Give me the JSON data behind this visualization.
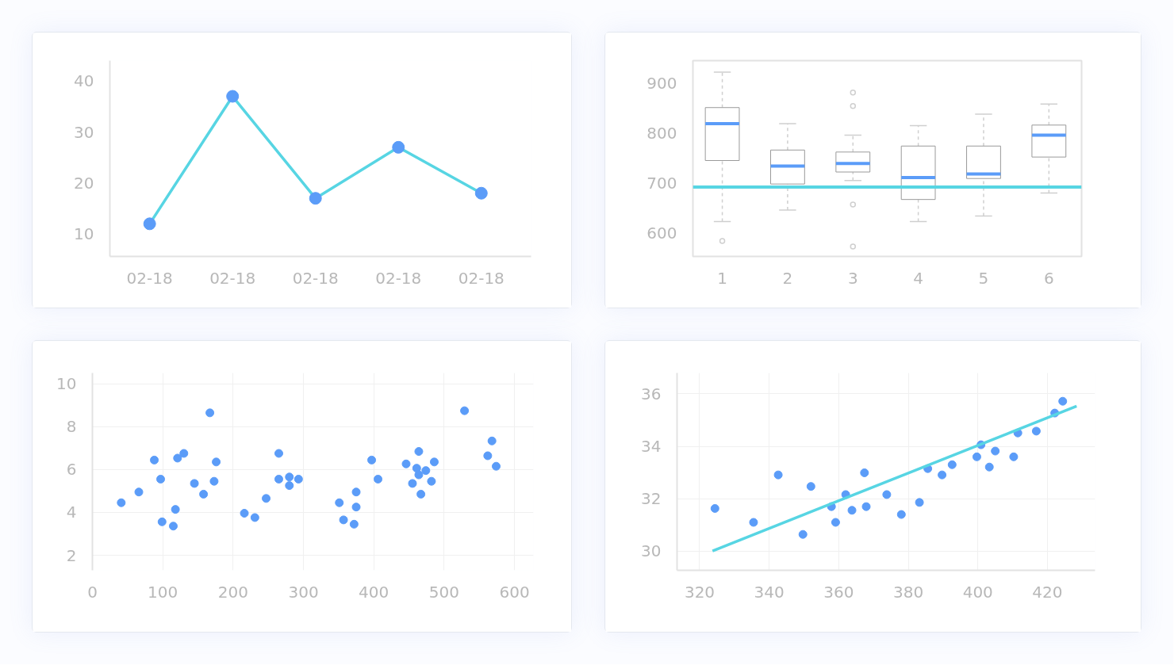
{
  "chart_data": [
    {
      "type": "line",
      "categories": [
        "02-18",
        "02-18",
        "02-18",
        "02-18",
        "02-18"
      ],
      "values": [
        12,
        37,
        17,
        27,
        18
      ],
      "color": "#57d5e3",
      "marker": "circle",
      "ylim": [
        5.6,
        44
      ],
      "yticks": [
        10,
        20,
        30,
        40
      ],
      "grid": false
    },
    {
      "type": "box",
      "categories": [
        "1",
        "2",
        "3",
        "4",
        "5",
        "6"
      ],
      "boxes": [
        {
          "low": 623,
          "q1": 745,
          "median": 819,
          "q3": 851,
          "high": 922,
          "outliers": [
            584
          ]
        },
        {
          "low": 646,
          "q1": 698,
          "median": 734,
          "q3": 766,
          "high": 819
        },
        {
          "low": 705,
          "q1": 722,
          "median": 739,
          "q3": 762,
          "high": 796,
          "outliers": [
            881,
            854,
            657,
            573
          ]
        },
        {
          "low": 623,
          "q1": 667,
          "median": 711,
          "q3": 774,
          "high": 815
        },
        {
          "low": 634,
          "q1": 709,
          "median": 718,
          "q3": 774,
          "high": 838
        },
        {
          "low": 680,
          "q1": 752,
          "median": 796,
          "q3": 816,
          "high": 858
        }
      ],
      "ref_lines": [
        {
          "axis": "y",
          "value": 692,
          "label": null,
          "color": "#57d5e3"
        }
      ],
      "ylim": [
        553,
        945
      ],
      "yticks": [
        600,
        700,
        800,
        900
      ],
      "grid": false
    },
    {
      "type": "scatter",
      "color": "#5b9cf8",
      "marker": "circle",
      "x": [
        41,
        66,
        88,
        97,
        99,
        115,
        118,
        121,
        130,
        145,
        158,
        167,
        173,
        176,
        216,
        231,
        247,
        265,
        265,
        280,
        280,
        293,
        351,
        357,
        372,
        375,
        375,
        397,
        406,
        446,
        455,
        461,
        464,
        464,
        467,
        474,
        482,
        486,
        529,
        562,
        568,
        574
      ],
      "values": [
        4.45,
        4.95,
        6.44,
        5.55,
        3.56,
        3.36,
        4.14,
        6.53,
        6.75,
        5.35,
        4.85,
        8.64,
        5.45,
        6.35,
        3.96,
        3.76,
        4.65,
        6.75,
        5.55,
        5.65,
        5.25,
        5.55,
        4.45,
        3.65,
        3.45,
        4.95,
        4.25,
        6.44,
        5.55,
        6.26,
        5.35,
        6.06,
        6.84,
        5.75,
        4.85,
        5.95,
        5.45,
        6.35,
        8.74,
        6.64,
        7.33,
        6.15
      ],
      "xlim": [
        0,
        627
      ],
      "ylim": [
        1.3,
        10.5
      ],
      "xticks": [
        0,
        100,
        200,
        300,
        400,
        500,
        600
      ],
      "yticks": [
        2,
        4,
        6,
        8,
        10
      ],
      "grid": true
    },
    {
      "type": "scatter",
      "series": [
        {
          "type": "scatter",
          "marker": "circle",
          "color": "#5b9cf8",
          "x": [
            324.4,
            335.5,
            342.6,
            349.7,
            352.0,
            357.9,
            359.1,
            362.0,
            363.8,
            367.4,
            367.9,
            373.8,
            378.0,
            383.2,
            385.6,
            389.7,
            392.6,
            399.7,
            400.9,
            403.3,
            405.0,
            410.3,
            411.5,
            416.8,
            422.1,
            424.4
          ],
          "values": [
            31.63,
            31.1,
            32.91,
            30.64,
            32.47,
            31.7,
            31.1,
            32.16,
            31.56,
            32.99,
            31.7,
            32.16,
            31.4,
            31.86,
            33.15,
            32.91,
            33.3,
            33.6,
            34.06,
            33.21,
            33.82,
            33.6,
            34.51,
            34.58,
            35.27,
            35.72
          ]
        },
        {
          "type": "line",
          "color": "#57d5e3",
          "x": [
            323.7,
            428.4
          ],
          "values": [
            30.01,
            35.53
          ]
        }
      ],
      "xlim": [
        313.5,
        433.7
      ],
      "ylim": [
        29.27,
        36.8
      ],
      "xticks": [
        320,
        340,
        360,
        380,
        400,
        420
      ],
      "yticks": [
        30,
        32,
        34,
        36
      ],
      "grid": true
    }
  ]
}
